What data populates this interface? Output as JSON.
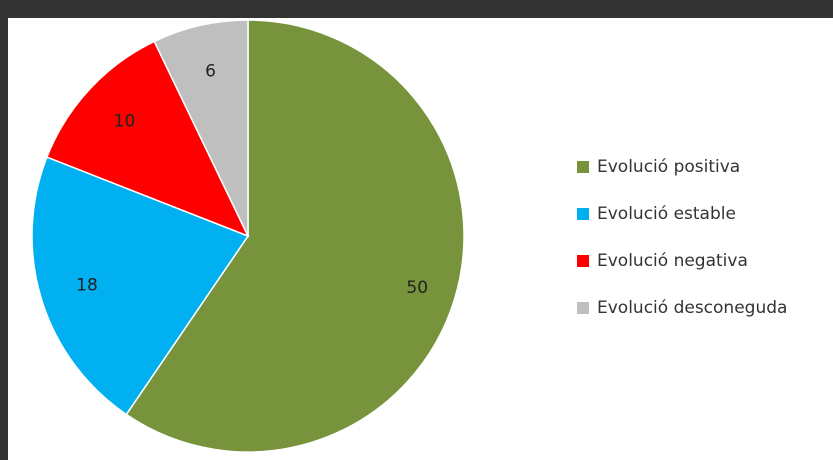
{
  "chart_data": {
    "type": "pie",
    "categories": [
      "Evolució positiva",
      "Evolució estable",
      "Evolució negativa",
      "Evolució desconeguda"
    ],
    "values": [
      50,
      18,
      10,
      6
    ],
    "colors": [
      "#77933c",
      "#00b0f0",
      "#ff0000",
      "#bfbfbf"
    ]
  }
}
